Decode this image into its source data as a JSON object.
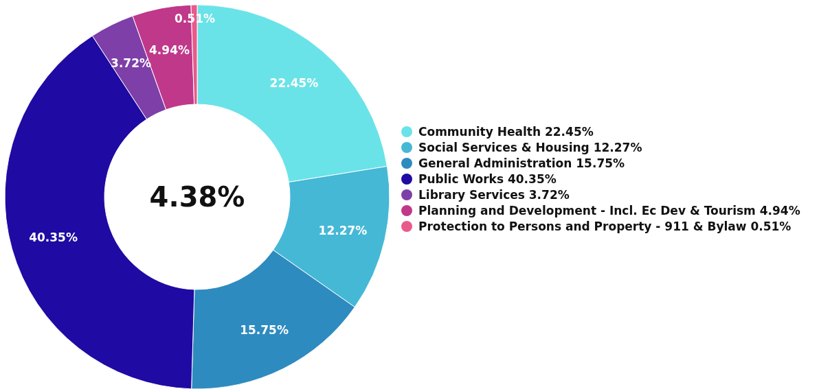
{
  "chart_data": {
    "type": "donut",
    "categories": [
      "Community Health",
      "Social Services & Housing",
      "General Administration",
      "Public Works",
      "Library Services",
      "Planning and Development - Incl. Ec Dev & Tourism",
      "Protection to Persons and Property - 911 & Bylaw"
    ],
    "values": [
      22.45,
      12.27,
      15.75,
      40.35,
      3.72,
      4.94,
      0.51
    ],
    "value_labels": [
      "22.45%",
      "12.27%",
      "15.75%",
      "40.35%",
      "3.72%",
      "4.94%",
      "0.51%"
    ],
    "colors": [
      "#6ae3e8",
      "#45b8d6",
      "#2e8bbf",
      "#1f0aa3",
      "#7e3fa8",
      "#c0388a",
      "#e85a8a"
    ],
    "legend": "right",
    "annotations": [
      "4.38%"
    ]
  }
}
